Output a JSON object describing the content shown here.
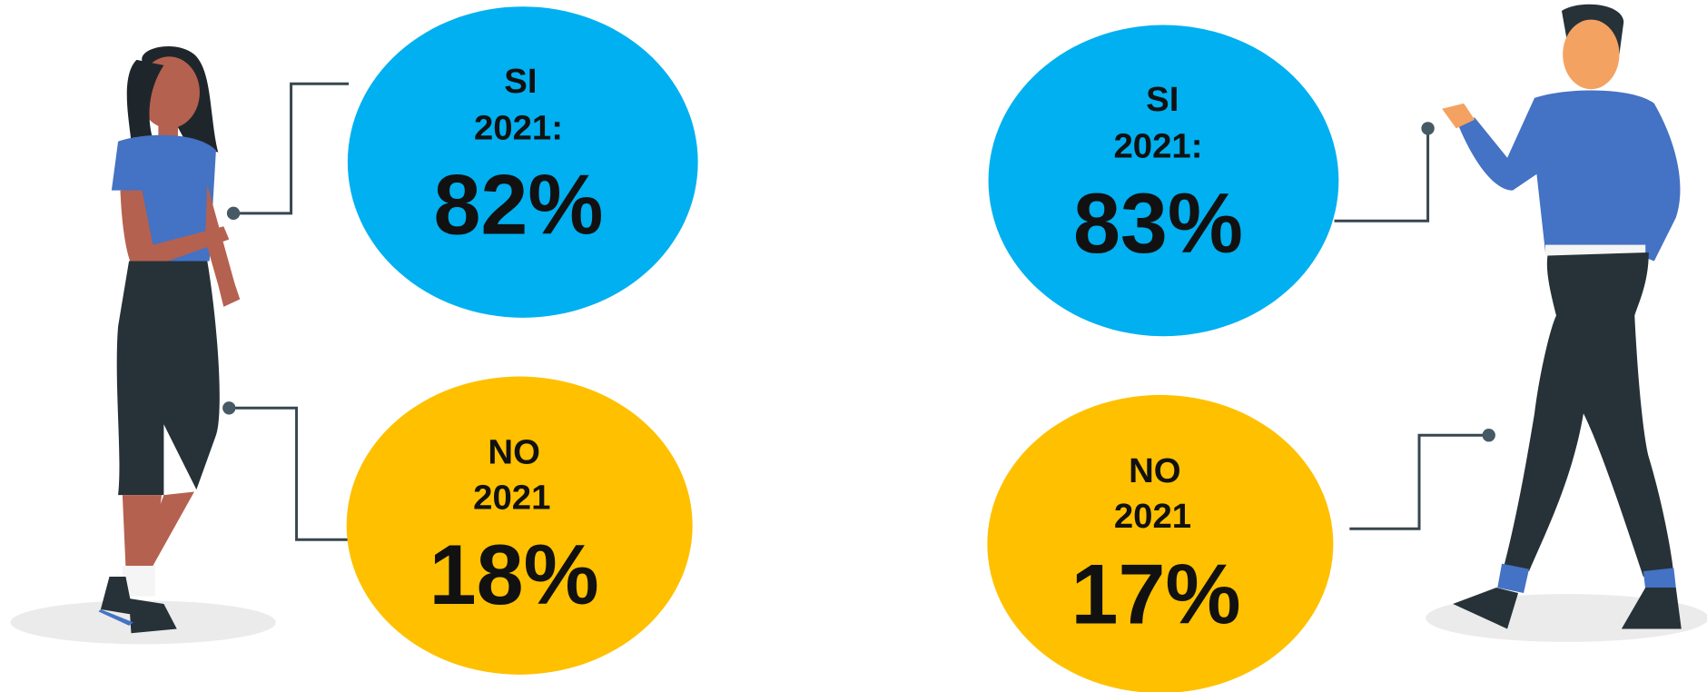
{
  "panels": [
    {
      "label": "SI",
      "year": "2021:",
      "value": "82%"
    },
    {
      "label": "NO",
      "year": "2021",
      "value": "18%"
    },
    {
      "label": "SI",
      "year": "2021:",
      "value": "83%"
    },
    {
      "label": "NO",
      "year": "2021",
      "value": "17%"
    }
  ]
}
